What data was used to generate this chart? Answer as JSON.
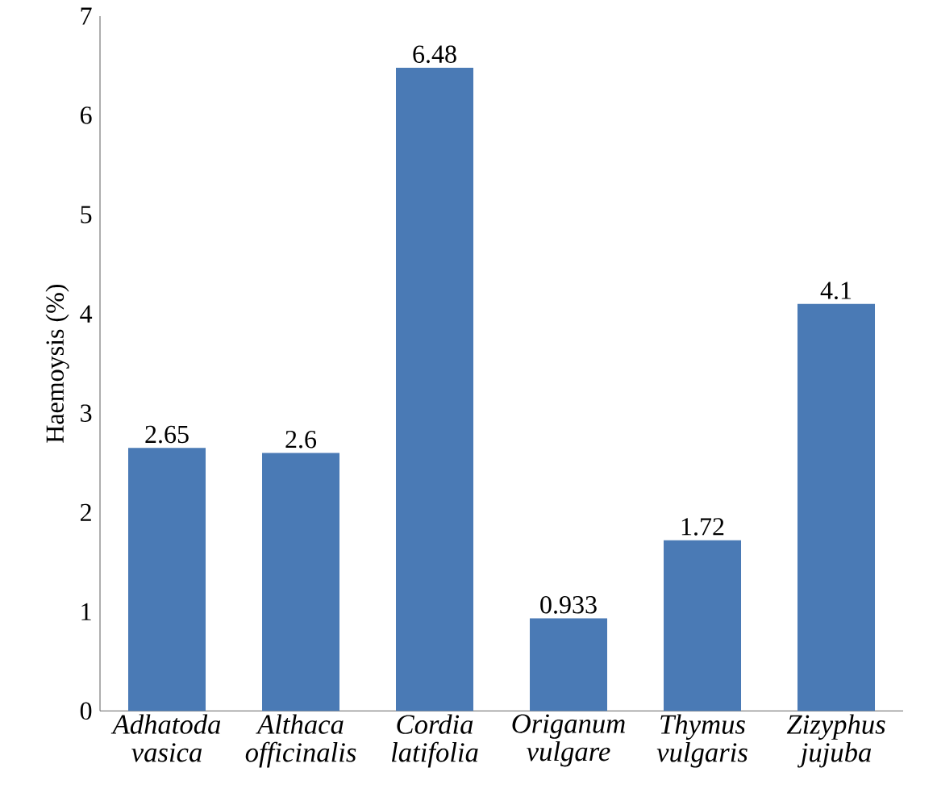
{
  "chart_data": {
    "type": "bar",
    "ylabel": "Haemoysis (%)",
    "categories": [
      "Adhatoda vasica",
      "Althaca officinalis",
      "Cordia latifolia",
      "Origanum vulgare",
      "Thymus vulgaris",
      "Zizyphus jujuba"
    ],
    "values": [
      2.65,
      2.6,
      6.48,
      0.933,
      1.72,
      4.1
    ],
    "color": "#4a7ab5",
    "ylim": [
      0,
      7
    ],
    "yticks": [
      0,
      1,
      2,
      3,
      4,
      5,
      6,
      7
    ],
    "data_labels": true,
    "grid": false
  }
}
